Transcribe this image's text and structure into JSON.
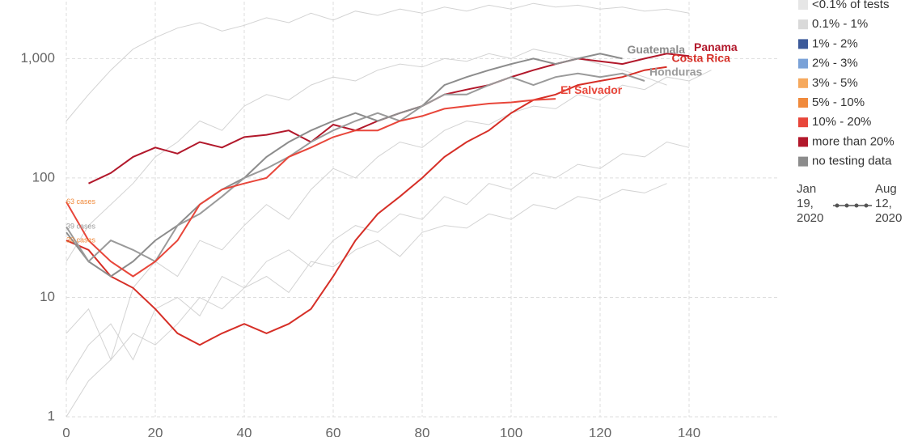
{
  "chart_data": {
    "type": "line",
    "log_y": true,
    "grid": true,
    "xlim": [
      0,
      160
    ],
    "xticks": [
      0,
      20,
      40,
      60,
      80,
      100,
      120,
      140
    ],
    "ylim": [
      1,
      3000
    ],
    "yticks": [
      1,
      10,
      100,
      {
        "value": 1000,
        "label": "1,000"
      }
    ],
    "x": [
      0,
      5,
      10,
      15,
      20,
      25,
      30,
      35,
      40,
      45,
      50,
      55,
      60,
      65,
      70,
      75,
      80,
      85,
      90,
      95,
      100,
      105,
      110,
      115,
      120,
      125,
      130,
      135,
      140,
      145
    ],
    "background_color": "#d3d3d3",
    "background": [
      [
        5,
        8,
        3,
        12,
        20,
        15,
        30,
        25,
        40,
        60,
        45,
        80,
        120,
        100,
        150,
        200,
        180,
        250,
        300,
        280,
        350,
        400,
        380,
        500,
        450,
        600,
        550,
        700,
        650,
        800
      ],
      [
        2,
        4,
        6,
        3,
        8,
        10,
        7,
        15,
        12,
        20,
        25,
        18,
        30,
        40,
        35,
        50,
        45,
        70,
        60,
        90,
        80,
        110,
        100,
        130,
        120,
        160,
        150,
        200,
        180,
        null
      ],
      [
        1,
        2,
        3,
        5,
        4,
        6,
        10,
        8,
        12,
        15,
        11,
        20,
        18,
        25,
        30,
        22,
        35,
        40,
        38,
        50,
        45,
        60,
        55,
        70,
        65,
        80,
        75,
        90,
        null,
        null
      ],
      [
        300,
        500,
        800,
        1200,
        1500,
        1800,
        2000,
        1700,
        1900,
        2200,
        2000,
        2400,
        2100,
        2500,
        2300,
        2600,
        2400,
        2700,
        2500,
        2800,
        2600,
        2900,
        2700,
        2800,
        2600,
        2700,
        2500,
        2600,
        2400,
        null
      ],
      [
        20,
        40,
        60,
        90,
        150,
        200,
        300,
        250,
        400,
        500,
        450,
        600,
        700,
        650,
        800,
        900,
        850,
        1000,
        950,
        1100,
        1000,
        1200,
        1100,
        1000,
        900,
        800,
        700,
        600,
        null,
        null
      ]
    ],
    "series": [
      {
        "name": "Panama",
        "color": "#b2182b",
        "values": [
          null,
          90,
          110,
          150,
          180,
          160,
          200,
          180,
          220,
          230,
          250,
          200,
          280,
          250,
          300,
          350,
          400,
          500,
          550,
          600,
          700,
          800,
          900,
          1000,
          950,
          900,
          1000,
          1100,
          1050,
          null
        ]
      },
      {
        "name": "Costa Rica",
        "color": "#d62f27",
        "values": [
          30,
          25,
          15,
          12,
          8,
          5,
          4,
          5,
          6,
          5,
          6,
          8,
          15,
          30,
          50,
          70,
          100,
          150,
          200,
          250,
          350,
          450,
          500,
          600,
          650,
          700,
          800,
          850,
          null,
          null
        ]
      },
      {
        "name": "Guatemala",
        "color": "#8c8c8c",
        "values": [
          35,
          20,
          15,
          20,
          30,
          40,
          60,
          80,
          100,
          150,
          200,
          250,
          300,
          350,
          300,
          350,
          400,
          600,
          700,
          800,
          900,
          1000,
          900,
          1000,
          1100,
          1000,
          null,
          null,
          null,
          null
        ]
      },
      {
        "name": "Honduras",
        "color": "#9a9a9a",
        "values": [
          39,
          20,
          30,
          25,
          20,
          40,
          50,
          70,
          100,
          120,
          150,
          200,
          250,
          300,
          350,
          300,
          400,
          500,
          500,
          600,
          700,
          600,
          700,
          750,
          700,
          750,
          650,
          null,
          null,
          null
        ]
      },
      {
        "name": "El Salvador",
        "color": "#e8463a",
        "values": [
          63,
          30,
          20,
          15,
          20,
          30,
          60,
          80,
          90,
          100,
          150,
          180,
          220,
          250,
          250,
          300,
          330,
          380,
          400,
          420,
          430,
          450,
          460,
          null,
          null,
          null,
          null,
          null,
          null,
          null
        ]
      }
    ],
    "annotations": [
      {
        "text": "63 cases",
        "x": 0,
        "y": 63,
        "color": "#f08a3c"
      },
      {
        "text": "39 cases",
        "x": 0,
        "y": 39,
        "color": "#999999"
      },
      {
        "text": "30 cases",
        "x": 0,
        "y": 30,
        "color": "#f08a3c"
      }
    ],
    "legend": [
      {
        "label": "<0.1% of tests",
        "color": "#e6e6e6"
      },
      {
        "label": "0.1% - 1%",
        "color": "#d9d9d9"
      },
      {
        "label": "1% - 2%",
        "color": "#3c5a9a"
      },
      {
        "label": "2% - 3%",
        "color": "#7aa2d8"
      },
      {
        "label": "3% - 5%",
        "color": "#f6a95d"
      },
      {
        "label": "5% - 10%",
        "color": "#f08a3c"
      },
      {
        "label": "10% - 20%",
        "color": "#e8463a"
      },
      {
        "label": "more than 20%",
        "color": "#b2182b"
      },
      {
        "label": "no testing data",
        "color": "#8c8c8c"
      }
    ],
    "date_start": "Jan 19, 2020",
    "date_end": "Aug 12, 2020"
  }
}
